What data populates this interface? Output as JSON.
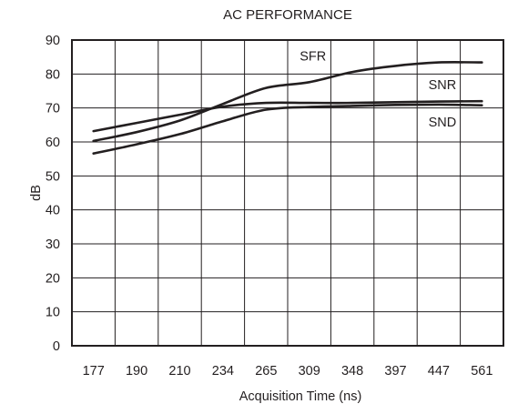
{
  "chart_data": {
    "type": "line",
    "title": "AC PERFORMANCE",
    "xlabel": "Acquisition Time (ns)",
    "ylabel": "dB",
    "categories": [
      "177",
      "190",
      "210",
      "234",
      "265",
      "309",
      "348",
      "397",
      "447",
      "561"
    ],
    "ylim": [
      0,
      90
    ],
    "yticks": [
      "0",
      "10",
      "20",
      "30",
      "40",
      "50",
      "60",
      "70",
      "80",
      "90"
    ],
    "grid": true,
    "legend": "none",
    "series": [
      {
        "name": "SFR",
        "label_anchor": {
          "x": "309",
          "y": 84
        },
        "points": [
          [
            "177",
            60.3
          ],
          [
            "190",
            62.9
          ],
          [
            "210",
            66.3
          ],
          [
            "234",
            71.2
          ],
          [
            "265",
            75.9
          ],
          [
            "309",
            77.6
          ],
          [
            "348",
            80.6
          ],
          [
            "397",
            82.4
          ],
          [
            "447",
            83.4
          ],
          [
            "561",
            83.4
          ]
        ]
      },
      {
        "name": "SNR",
        "label_anchor": {
          "x": "447",
          "y": 75.5
        },
        "points": [
          [
            "177",
            63.2
          ],
          [
            "190",
            65.6
          ],
          [
            "210",
            68.0
          ],
          [
            "234",
            70.4
          ],
          [
            "265",
            71.5
          ],
          [
            "309",
            71.5
          ],
          [
            "348",
            71.5
          ],
          [
            "397",
            71.7
          ],
          [
            "447",
            71.9
          ],
          [
            "561",
            72.0
          ]
        ]
      },
      {
        "name": "SND",
        "label_anchor": {
          "x": "447",
          "y": 64.5
        },
        "points": [
          [
            "177",
            56.6
          ],
          [
            "190",
            59.3
          ],
          [
            "210",
            62.3
          ],
          [
            "234",
            66.1
          ],
          [
            "265",
            69.5
          ],
          [
            "309",
            70.3
          ],
          [
            "348",
            70.6
          ],
          [
            "397",
            70.9
          ],
          [
            "447",
            71.0
          ],
          [
            "561",
            70.8
          ]
        ]
      }
    ]
  }
}
